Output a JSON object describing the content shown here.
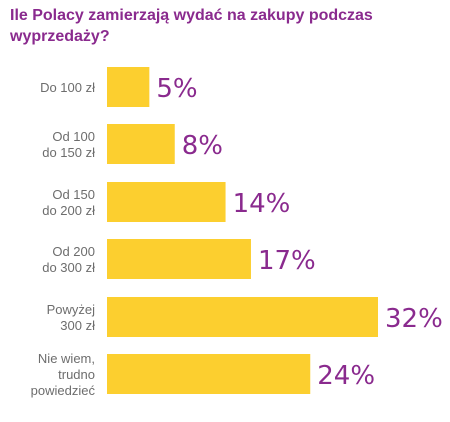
{
  "chart_data": {
    "type": "bar",
    "orientation": "horizontal",
    "title": "Ile Polacy zamierzają wydać na zakupy podczas wyprzedaży?",
    "categories": [
      [
        "Do 100 zł"
      ],
      [
        "Od 100",
        "do 150 zł"
      ],
      [
        "Od 150",
        "do 200 zł"
      ],
      [
        "Od 200",
        "do 300 zł"
      ],
      [
        "Powyżej",
        "300 zł"
      ],
      [
        "Nie wiem,",
        "trudno",
        "powiedzieć"
      ]
    ],
    "values": [
      5,
      8,
      14,
      17,
      32,
      24
    ],
    "value_labels": [
      "5%",
      "8%",
      "14%",
      "17%",
      "32%",
      "24%"
    ],
    "unit": "%",
    "xlim": [
      0,
      32
    ],
    "grid": false,
    "legend": "none",
    "colors": {
      "bar": "#fccf2f",
      "title": "#8a2a8e",
      "value_label": "#8a2a8e",
      "category_label": "#6d6d6d"
    }
  }
}
